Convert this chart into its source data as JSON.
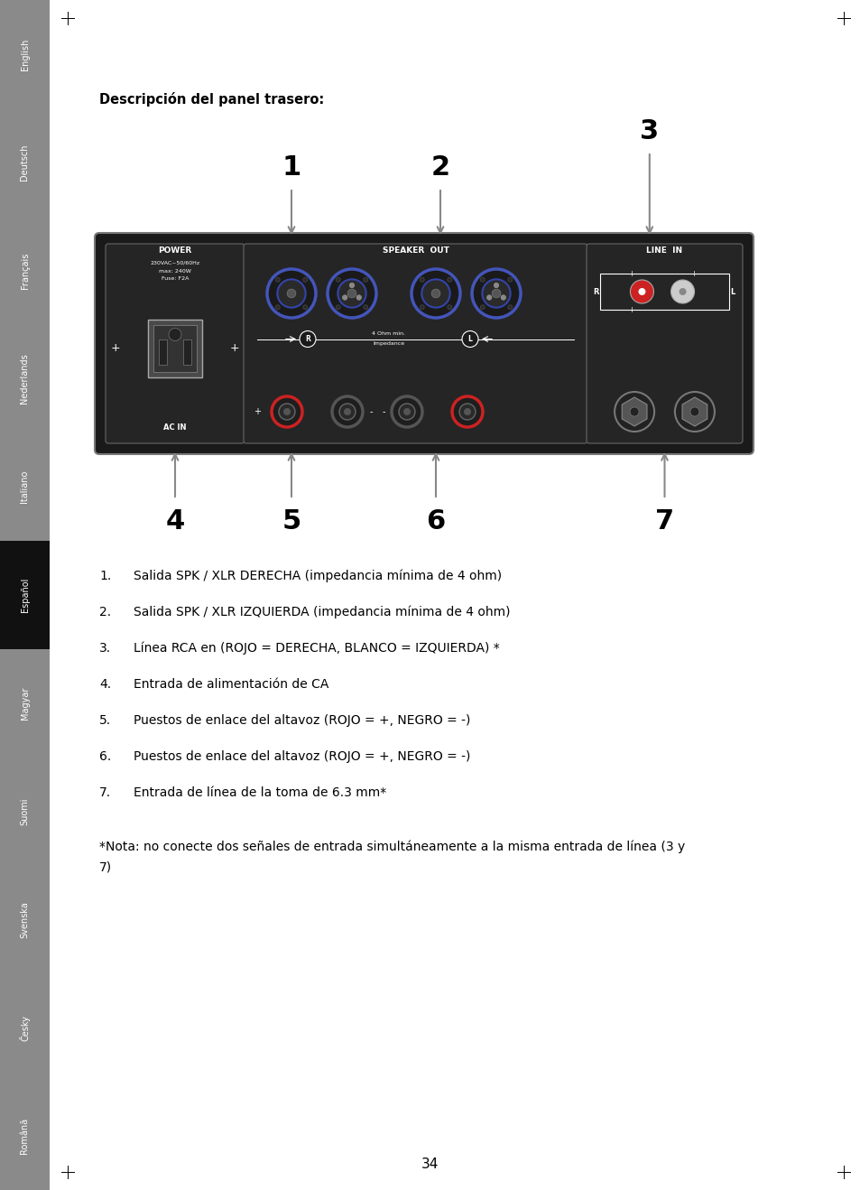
{
  "page_number": "34",
  "title": "Descripción del panel trasero:",
  "sidebar_labels": [
    "English",
    "Deutsch",
    "Français",
    "Nederlands",
    "Italiano",
    "Español",
    "Magyar",
    "Suomi",
    "Svenska",
    "Česky",
    "Română"
  ],
  "active_sidebar": "Español",
  "sidebar_bg": "#8a8a8a",
  "active_sidebar_bg": "#111111",
  "body_bg": "#ffffff",
  "list_items_num": [
    "1.",
    "2.",
    "3.",
    "4.",
    "5.",
    "6.",
    "7."
  ],
  "list_items_text": [
    "Salida SPK / XLR DERECHA (impedancia mínima de 4 ohm)",
    "Salida SPK / XLR IZQUIERDA (impedancia mínima de 4 ohm)",
    "Línea RCA en (ROJO = DERECHA, BLANCO = IZQUIERDA) *",
    "Entrada de alimentación de CA",
    "Puestos de enlace del altavoz (ROJO = +, NEGRO = -)",
    "Puestos de enlace del altavoz (ROJO = +, NEGRO = -)",
    "Entrada de línea de la toma de 6.3 mm*"
  ],
  "footnote_line1": "*Nota: no conecte dos señales de entrada simultáneamente a la misma entrada de línea (3 y",
  "footnote_line2": "7)",
  "panel_bg": "#1a1a1a",
  "power_text": [
    "230VAC~50/60Hz",
    "max: 240W",
    "Fuse: F2A"
  ],
  "impedance_text_1": "4 Ohm min.",
  "impedance_text_2": "Impedance"
}
